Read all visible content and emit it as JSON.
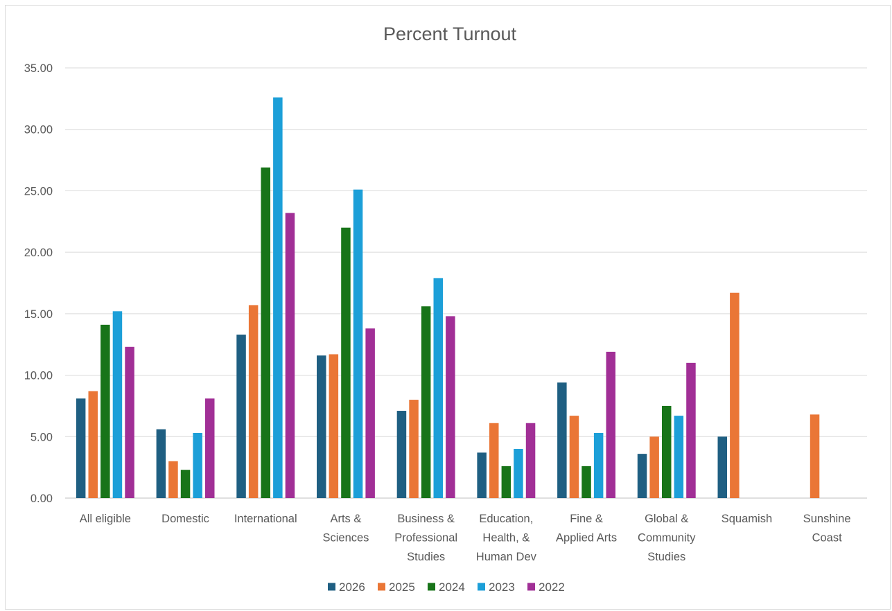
{
  "chart_data": {
    "type": "bar",
    "title": "Percent Turnout",
    "xlabel": "",
    "ylabel": "",
    "ylim": [
      0,
      35
    ],
    "yticks": [
      "0.00",
      "5.00",
      "10.00",
      "15.00",
      "20.00",
      "25.00",
      "30.00",
      "35.00"
    ],
    "grid": true,
    "legend_position": "bottom",
    "categories": [
      [
        "All eligible"
      ],
      [
        "Domestic"
      ],
      [
        "International"
      ],
      [
        "Arts &",
        "Sciences"
      ],
      [
        "Business &",
        "Professional",
        "Studies"
      ],
      [
        "Education,",
        "Health, &",
        "Human Dev"
      ],
      [
        "Fine &",
        "Applied Arts"
      ],
      [
        "Global &",
        "Community",
        "Studies"
      ],
      [
        "Squamish"
      ],
      [
        "Sunshine",
        "Coast"
      ]
    ],
    "series": [
      {
        "name": "2026",
        "color": "#1f5f82",
        "values": [
          8.1,
          5.6,
          13.3,
          11.6,
          7.1,
          3.7,
          9.4,
          3.6,
          5.0,
          null
        ]
      },
      {
        "name": "2025",
        "color": "#ea7636",
        "values": [
          8.7,
          3.0,
          15.7,
          11.7,
          8.0,
          6.1,
          6.7,
          5.0,
          16.7,
          6.8
        ]
      },
      {
        "name": "2024",
        "color": "#187419",
        "values": [
          14.1,
          2.3,
          26.9,
          22.0,
          15.6,
          2.6,
          2.6,
          7.5,
          null,
          null
        ]
      },
      {
        "name": "2023",
        "color": "#1c9fd8",
        "values": [
          15.2,
          5.3,
          32.6,
          25.1,
          17.9,
          4.0,
          5.3,
          6.7,
          null,
          null
        ]
      },
      {
        "name": "2022",
        "color": "#a12f96",
        "values": [
          12.3,
          8.1,
          23.2,
          13.8,
          14.8,
          6.1,
          11.9,
          11.0,
          null,
          null
        ]
      }
    ]
  }
}
